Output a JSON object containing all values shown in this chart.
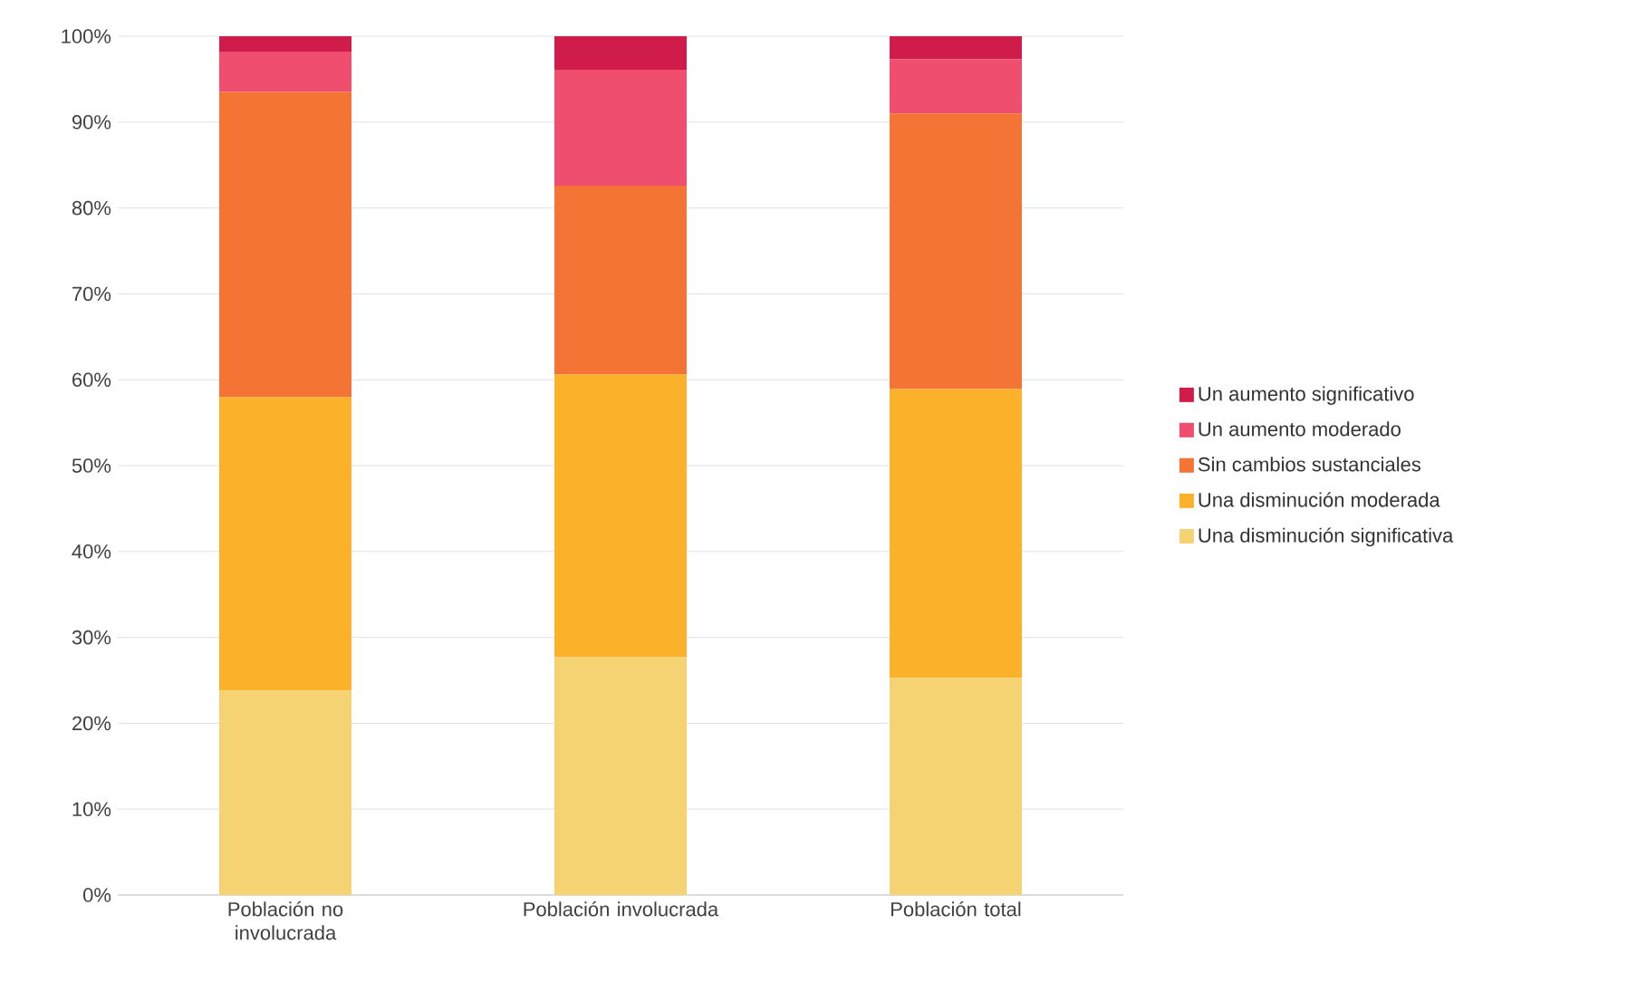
{
  "chart_data": {
    "type": "bar",
    "stacked": true,
    "categories": [
      "Población no involucrada",
      "Población involucrada",
      "Población total"
    ],
    "series": [
      {
        "name": "Una disminución significativa",
        "color": "#f5d272",
        "values": [
          23.8,
          27.7,
          25.3
        ]
      },
      {
        "name": "Una disminución moderada",
        "color": "#fbb12a",
        "values": [
          34.2,
          32.9,
          33.6
        ]
      },
      {
        "name": "Sin cambios sustanciales",
        "color": "#f37435",
        "values": [
          35.5,
          22.0,
          32.1
        ]
      },
      {
        "name": "Un aumento moderado",
        "color": "#ef4e6f",
        "values": [
          4.7,
          13.5,
          6.3
        ]
      },
      {
        "name": "Un aumento significativo",
        "color": "#d01c4b",
        "values": [
          1.8,
          3.9,
          2.7
        ]
      }
    ],
    "ylim": [
      0,
      100
    ],
    "yticks": [
      {
        "value": 0,
        "label": "0%"
      },
      {
        "value": 10,
        "label": "10%"
      },
      {
        "value": 20,
        "label": "20%"
      },
      {
        "value": 30,
        "label": "30%"
      },
      {
        "value": 40,
        "label": "40%"
      },
      {
        "value": 50,
        "label": "50%"
      },
      {
        "value": 60,
        "label": "60%"
      },
      {
        "value": 70,
        "label": "70%"
      },
      {
        "value": 80,
        "label": "80%"
      },
      {
        "value": 90,
        "label": "90%"
      },
      {
        "value": 100,
        "label": "100%"
      }
    ],
    "grid": "y",
    "legend": "right"
  }
}
